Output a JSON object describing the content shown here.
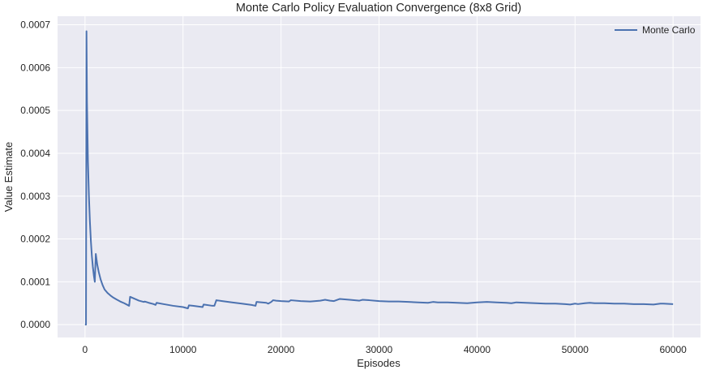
{
  "chart_data": {
    "type": "line",
    "title": "Monte Carlo Policy Evaluation Convergence (8x8 Grid)",
    "xlabel": "Episodes",
    "ylabel": "Value Estimate",
    "xlim": [
      -2800,
      62800
    ],
    "ylim": [
      -3e-05,
      0.00072
    ],
    "xticks": [
      0,
      10000,
      20000,
      30000,
      40000,
      50000,
      60000
    ],
    "xtick_labels": [
      "0",
      "10000",
      "20000",
      "30000",
      "40000",
      "50000",
      "60000"
    ],
    "yticks": [
      0.0,
      0.0001,
      0.0002,
      0.0003,
      0.0004,
      0.0005,
      0.0006,
      0.0007
    ],
    "ytick_labels": [
      "0.0000",
      "0.0001",
      "0.0002",
      "0.0003",
      "0.0004",
      "0.0005",
      "0.0006",
      "0.0007"
    ],
    "grid": true,
    "legend_position": "top-right",
    "colors": {
      "background": "#eaeaf2",
      "grid": "#ffffff",
      "line": "#4c72b0"
    },
    "series": [
      {
        "name": "Monte Carlo",
        "x": [
          0,
          100,
          150,
          200,
          300,
          400,
          500,
          600,
          700,
          800,
          900,
          1000,
          1100,
          1250,
          1400,
          1600,
          1800,
          2000,
          2300,
          2600,
          2900,
          3200,
          3600,
          4000,
          4500,
          4600,
          5000,
          5500,
          6000,
          6100,
          6500,
          7000,
          7200,
          7300,
          8000,
          9000,
          10000,
          10500,
          10600,
          11000,
          12000,
          12100,
          13000,
          13200,
          13400,
          14000,
          15000,
          16000,
          17000,
          17400,
          17500,
          18500,
          18700,
          19000,
          19200,
          19500,
          20000,
          20800,
          21000,
          22000,
          23000,
          24000,
          24500,
          25000,
          25400,
          26000,
          27000,
          28000,
          28300,
          29000,
          30000,
          31000,
          32000,
          33000,
          34000,
          35000,
          35500,
          36000,
          37000,
          38000,
          39000,
          40000,
          41000,
          42000,
          43000,
          43500,
          44000,
          45000,
          46000,
          47000,
          48000,
          49000,
          49500,
          50000,
          50300,
          51000,
          51500,
          52000,
          53000,
          54000,
          55000,
          56000,
          57000,
          58000,
          58700,
          59000,
          60000
        ],
        "values": [
          0.0,
          0.0,
          0.000685,
          0.00052,
          0.00038,
          0.0003,
          0.00024,
          0.000195,
          0.00016,
          0.000135,
          0.000115,
          0.0001,
          0.000165,
          0.00014,
          0.000123,
          0.000105,
          9.2e-05,
          8.2e-05,
          7.4e-05,
          6.8e-05,
          6.3e-05,
          5.9e-05,
          5.4e-05,
          5e-05,
          4.4e-05,
          6.5e-05,
          6.1e-05,
          5.6e-05,
          5.3e-05,
          5.4e-05,
          5.1e-05,
          4.8e-05,
          4.6e-05,
          5.1e-05,
          4.8e-05,
          4.4e-05,
          4.1e-05,
          3.8e-05,
          4.5e-05,
          4.4e-05,
          4.1e-05,
          4.7e-05,
          4.4e-05,
          4.4e-05,
          5.7e-05,
          5.5e-05,
          5.2e-05,
          4.9e-05,
          4.6e-05,
          4.4e-05,
          5.3e-05,
          5.1e-05,
          4.9e-05,
          5.3e-05,
          5.7e-05,
          5.6e-05,
          5.5e-05,
          5.4e-05,
          5.7e-05,
          5.5e-05,
          5.4e-05,
          5.6e-05,
          5.8e-05,
          5.6e-05,
          5.5e-05,
          6e-05,
          5.8e-05,
          5.6e-05,
          5.8e-05,
          5.7e-05,
          5.5e-05,
          5.4e-05,
          5.4e-05,
          5.3e-05,
          5.2e-05,
          5.1e-05,
          5.3e-05,
          5.2e-05,
          5.2e-05,
          5.1e-05,
          5e-05,
          5.2e-05,
          5.3e-05,
          5.2e-05,
          5.1e-05,
          5e-05,
          5.2e-05,
          5.1e-05,
          5e-05,
          4.9e-05,
          4.9e-05,
          4.8e-05,
          4.7e-05,
          4.9e-05,
          4.8e-05,
          5e-05,
          5.1e-05,
          5e-05,
          5e-05,
          4.9e-05,
          4.9e-05,
          4.8e-05,
          4.8e-05,
          4.7e-05,
          4.9e-05,
          4.9e-05,
          4.8e-05
        ]
      }
    ]
  }
}
